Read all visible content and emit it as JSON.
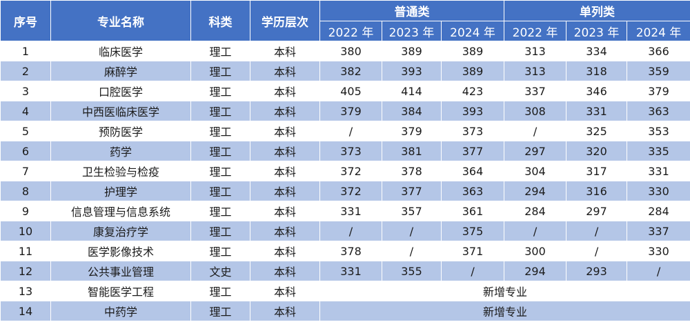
{
  "table": {
    "headers": {
      "seq": "序号",
      "major": "专业名称",
      "category": "科类",
      "level": "学历层次",
      "group_regular": "普通类",
      "group_single": "单列类",
      "years": [
        "2022 年",
        "2023 年",
        "2024 年",
        "2022 年",
        "2023 年",
        "2024 年"
      ]
    },
    "rows": [
      {
        "seq": "1",
        "major": "临床医学",
        "category": "理工",
        "level": "本科",
        "scores": [
          "380",
          "389",
          "389",
          "313",
          "334",
          "366"
        ]
      },
      {
        "seq": "2",
        "major": "麻醉学",
        "category": "理工",
        "level": "本科",
        "scores": [
          "382",
          "393",
          "389",
          "313",
          "318",
          "359"
        ]
      },
      {
        "seq": "3",
        "major": "口腔医学",
        "category": "理工",
        "level": "本科",
        "scores": [
          "405",
          "414",
          "423",
          "337",
          "346",
          "379"
        ]
      },
      {
        "seq": "4",
        "major": "中西医临床医学",
        "category": "理工",
        "level": "本科",
        "scores": [
          "379",
          "384",
          "393",
          "308",
          "331",
          "363"
        ]
      },
      {
        "seq": "5",
        "major": "预防医学",
        "category": "理工",
        "level": "本科",
        "scores": [
          "/",
          "379",
          "373",
          "/",
          "325",
          "353"
        ]
      },
      {
        "seq": "6",
        "major": "药学",
        "category": "理工",
        "level": "本科",
        "scores": [
          "373",
          "381",
          "377",
          "297",
          "320",
          "335"
        ]
      },
      {
        "seq": "7",
        "major": "卫生检验与检疫",
        "category": "理工",
        "level": "本科",
        "scores": [
          "372",
          "378",
          "364",
          "304",
          "317",
          "331"
        ]
      },
      {
        "seq": "8",
        "major": "护理学",
        "category": "理工",
        "level": "本科",
        "scores": [
          "372",
          "377",
          "363",
          "294",
          "316",
          "330"
        ]
      },
      {
        "seq": "9",
        "major": "信息管理与信息系统",
        "category": "理工",
        "level": "本科",
        "scores": [
          "331",
          "357",
          "361",
          "284",
          "297",
          "284"
        ]
      },
      {
        "seq": "10",
        "major": "康复治疗学",
        "category": "理工",
        "level": "本科",
        "scores": [
          "/",
          "/",
          "375",
          "/",
          "/",
          "337"
        ]
      },
      {
        "seq": "11",
        "major": "医学影像技术",
        "category": "理工",
        "level": "本科",
        "scores": [
          "378",
          "/",
          "371",
          "300",
          "/",
          "330"
        ]
      },
      {
        "seq": "12",
        "major": "公共事业管理",
        "category": "文史",
        "level": "本科",
        "scores": [
          "331",
          "355",
          "/",
          "294",
          "293",
          "/"
        ]
      },
      {
        "seq": "13",
        "major": "智能医学工程",
        "category": "理工",
        "level": "本科",
        "merged": "新增专业"
      },
      {
        "seq": "14",
        "major": "中药学",
        "category": "理工",
        "level": "本科",
        "merged": "新增专业"
      }
    ]
  }
}
